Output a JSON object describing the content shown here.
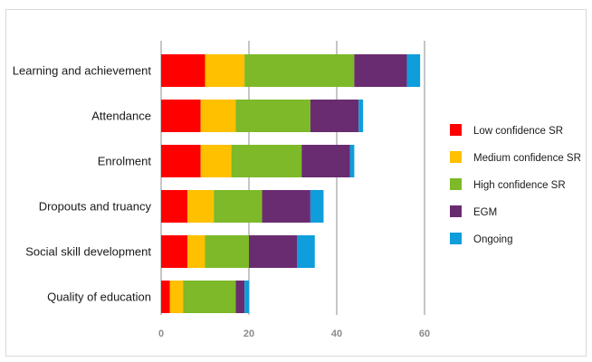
{
  "chart_data": {
    "type": "bar",
    "orientation": "horizontal",
    "stacked": true,
    "categories": [
      "Learning and achievement",
      "Attendance",
      "Enrolment",
      "Dropouts and truancy",
      "Social skill development",
      "Quality of education"
    ],
    "series": [
      {
        "name": "Low confidence SR",
        "color": "#ff0000",
        "values": [
          10,
          9,
          9,
          6,
          6,
          2
        ]
      },
      {
        "name": "Medium confidence SR",
        "color": "#ffc000",
        "values": [
          9,
          8,
          7,
          6,
          4,
          3
        ]
      },
      {
        "name": "High confidence SR",
        "color": "#7db928",
        "values": [
          25,
          17,
          16,
          11,
          10,
          12
        ]
      },
      {
        "name": "EGM",
        "color": "#6a2c70",
        "values": [
          12,
          11,
          11,
          11,
          11,
          2
        ]
      },
      {
        "name": "Ongoing",
        "color": "#0f9ddc",
        "values": [
          3,
          1,
          1,
          3,
          4,
          1
        ]
      }
    ],
    "xticks": [
      0,
      20,
      40,
      60
    ],
    "xlim": [
      0,
      60
    ],
    "grid": "vertical",
    "legend_position": "right",
    "title": "",
    "xlabel": "",
    "ylabel": ""
  }
}
